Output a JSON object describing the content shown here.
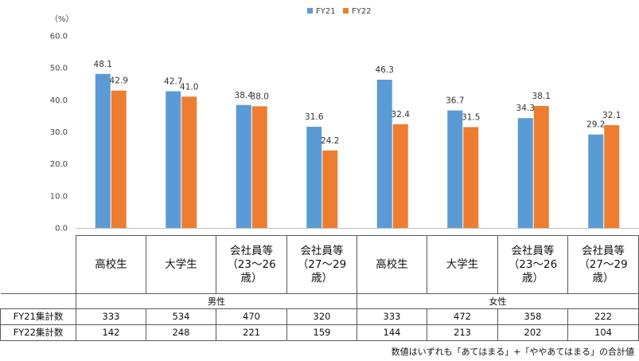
{
  "chart_data": {
    "type": "bar",
    "unit": "（%）",
    "ylim": [
      0,
      60
    ],
    "yticks": [
      "0.0",
      "10.0",
      "20.0",
      "30.0",
      "40.0",
      "50.0",
      "60.0"
    ],
    "grid": false,
    "legend_position": "top-center",
    "categories": [
      "高校生",
      "大学生",
      "会社員等\n（23～26\n歳）",
      "会社員等\n（27～29\n歳）",
      "高校生",
      "大学生",
      "会社員等\n（23～26\n歳）",
      "会社員等\n（27～29\n歳）"
    ],
    "groups": [
      {
        "label": "男性",
        "span": 4
      },
      {
        "label": "女性",
        "span": 4
      }
    ],
    "series": [
      {
        "name": "FY21",
        "color": "#5b9bd5",
        "values": [
          48.1,
          42.7,
          38.4,
          31.6,
          46.3,
          36.7,
          34.3,
          29.2
        ]
      },
      {
        "name": "FY22",
        "color": "#ed7d31",
        "values": [
          42.9,
          41.0,
          38.0,
          24.2,
          32.4,
          31.5,
          38.1,
          32.1
        ]
      }
    ]
  },
  "table": {
    "rows": [
      {
        "label": "FY21集計数",
        "values": [
          "333",
          "534",
          "470",
          "320",
          "333",
          "472",
          "358",
          "222"
        ]
      },
      {
        "label": "FY22集計数",
        "values": [
          "142",
          "248",
          "221",
          "159",
          "144",
          "213",
          "202",
          "104"
        ]
      }
    ]
  },
  "note": "数値はいずれも「あてはまる」+「ややあてはまる」の合計値"
}
